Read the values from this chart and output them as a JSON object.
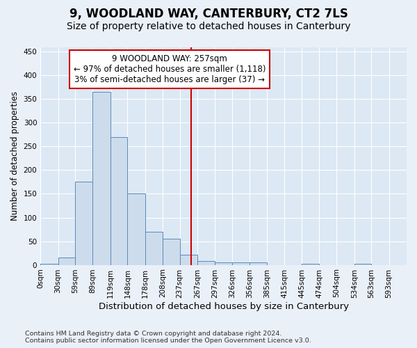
{
  "title": "9, WOODLAND WAY, CANTERBURY, CT2 7LS",
  "subtitle": "Size of property relative to detached houses in Canterbury",
  "xlabel": "Distribution of detached houses by size in Canterbury",
  "ylabel": "Number of detached properties",
  "bin_edges": [
    0,
    30,
    59,
    89,
    119,
    148,
    178,
    208,
    237,
    267,
    297,
    326,
    356,
    385,
    415,
    445,
    474,
    504,
    534,
    563,
    593
  ],
  "bar_heights": [
    2,
    15,
    175,
    365,
    270,
    150,
    70,
    55,
    22,
    8,
    5,
    5,
    5,
    0,
    0,
    2,
    0,
    0,
    2,
    0
  ],
  "bar_color": "#cddcec",
  "bar_edge_color": "#5a8ab8",
  "vline_x": 257,
  "vline_color": "#cc0000",
  "annotation_line1": "9 WOODLAND WAY: 257sqm",
  "annotation_line2": "← 97% of detached houses are smaller (1,118)",
  "annotation_line3": "3% of semi-detached houses are larger (37) →",
  "annotation_box_color": "#cc0000",
  "annotation_box_fill": "#ffffff",
  "ylim": [
    0,
    460
  ],
  "yticks": [
    0,
    50,
    100,
    150,
    200,
    250,
    300,
    350,
    400,
    450
  ],
  "xlim_max": 623,
  "fig_bg_color": "#eaf0f8",
  "plot_bg_color": "#dce8f4",
  "grid_color": "#ffffff",
  "footer_line1": "Contains HM Land Registry data © Crown copyright and database right 2024.",
  "footer_line2": "Contains public sector information licensed under the Open Government Licence v3.0.",
  "title_fontsize": 12,
  "subtitle_fontsize": 10,
  "tick_label_fontsize": 7.5,
  "ylabel_fontsize": 8.5,
  "xlabel_fontsize": 9.5,
  "footer_fontsize": 6.8,
  "ann_fontsize": 8.5
}
